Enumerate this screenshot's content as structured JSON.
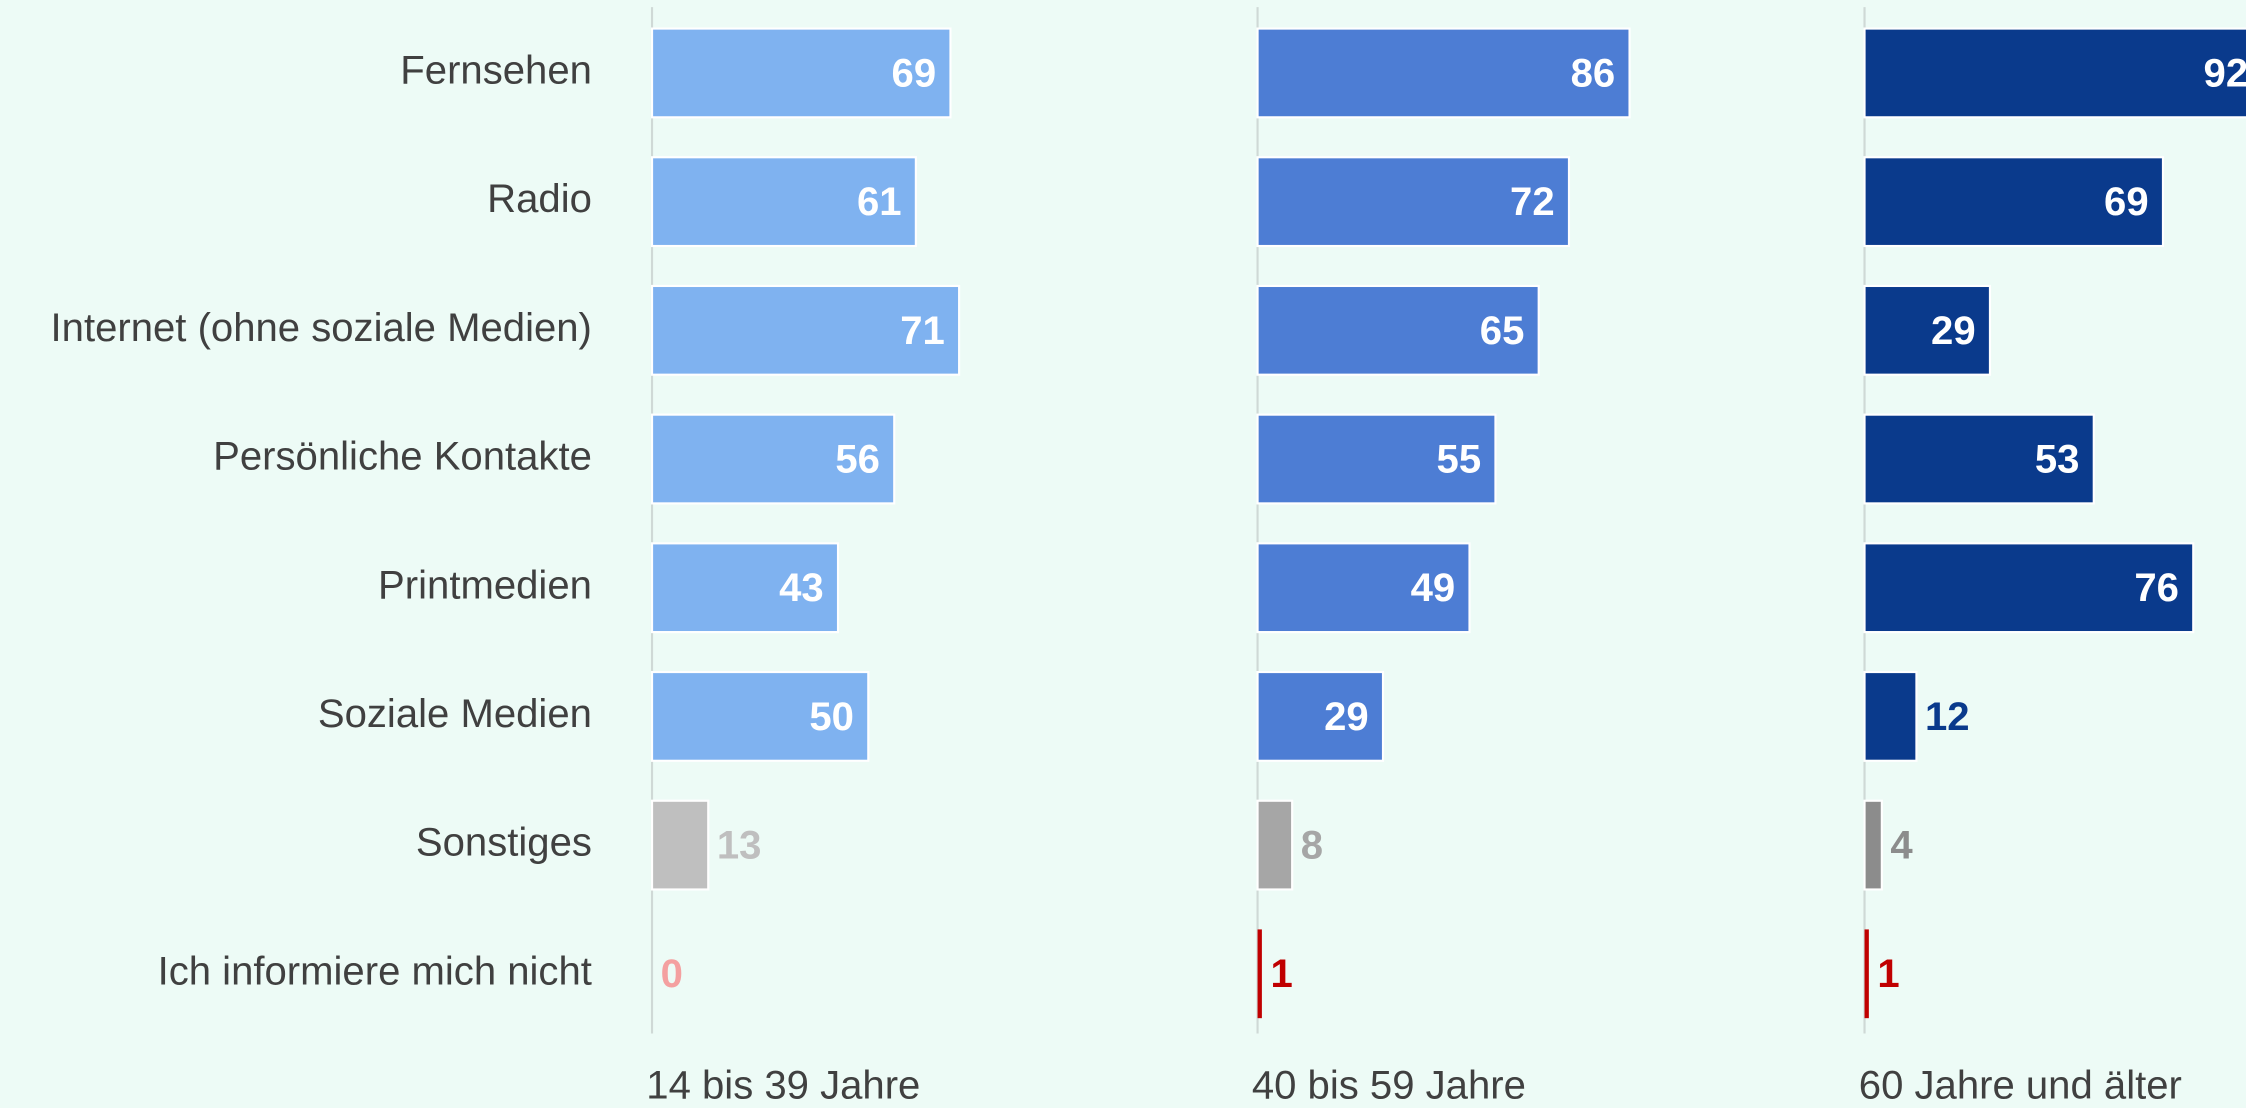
{
  "chart_data": {
    "type": "bar",
    "orientation": "horizontal",
    "categories": [
      "Fernsehen",
      "Radio",
      "Internet (ohne soziale Medien)",
      "Persönliche Kontakte",
      "Printmedien",
      "Soziale Medien",
      "Sonstiges",
      "Ich informiere mich nicht"
    ],
    "xlim": [
      0,
      140
    ],
    "series": [
      {
        "name": "14 bis 39 Jahre",
        "color": "#7fb2f0",
        "colors": [
          "#7fb2f0",
          "#7fb2f0",
          "#7fb2f0",
          "#7fb2f0",
          "#7fb2f0",
          "#7fb2f0",
          "#bfbfbf",
          "#f4a0a0"
        ],
        "values": [
          69,
          61,
          71,
          56,
          43,
          50,
          13,
          0
        ]
      },
      {
        "name": "40 bis 59 Jahre",
        "color": "#4d7dd4",
        "colors": [
          "#4d7dd4",
          "#4d7dd4",
          "#4d7dd4",
          "#4d7dd4",
          "#4d7dd4",
          "#4d7dd4",
          "#a6a6a6",
          "#c00000"
        ],
        "values": [
          86,
          72,
          65,
          55,
          49,
          29,
          8,
          1
        ]
      },
      {
        "name": "60 Jahre und älter",
        "color": "#0a3a8c",
        "colors": [
          "#0a3a8c",
          "#0a3a8c",
          "#0a3a8c",
          "#0a3a8c",
          "#0a3a8c",
          "#0a3a8c",
          "#8c8c8c",
          "#c00000"
        ],
        "values": [
          92,
          69,
          29,
          53,
          76,
          12,
          4,
          1
        ]
      }
    ]
  }
}
